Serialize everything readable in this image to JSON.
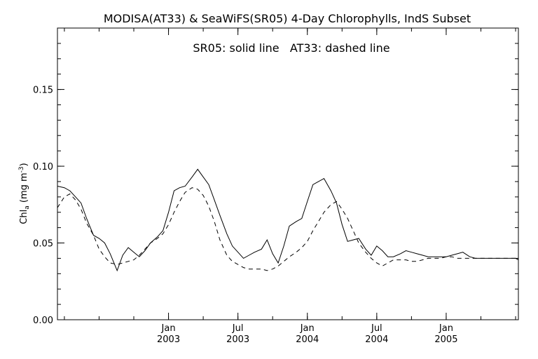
{
  "chart_data": {
    "type": "line",
    "title": "MODISA(AT33) & SeaWiFS(SR05) 4-Day Chlorophylls, IndS Subset",
    "annotation": "SR05: solid line   AT33: dashed line",
    "ylabel": "Chl",
    "ylabel_sub": "a",
    "ylabel_unit_open": " (mg m",
    "ylabel_unit_sup": "-3",
    "ylabel_unit_close": ")",
    "ylim": [
      0,
      0.19
    ],
    "yticks": [
      {
        "value": 0.0,
        "label": "0.00"
      },
      {
        "value": 0.05,
        "label": "0.05"
      },
      {
        "value": 0.1,
        "label": "0.10"
      },
      {
        "value": 0.15,
        "label": "0.15"
      }
    ],
    "xlim": [
      2002.2,
      2005.52
    ],
    "xticks": [
      {
        "value": 2003.0,
        "month": "Jan",
        "year": "2003"
      },
      {
        "value": 2003.5,
        "month": "Jul",
        "year": "2003"
      },
      {
        "value": 2004.0,
        "month": "Jan",
        "year": "2004"
      },
      {
        "value": 2004.5,
        "month": "Jul",
        "year": "2004"
      },
      {
        "value": 2005.0,
        "month": "Jan",
        "year": "2005"
      }
    ],
    "grid": false,
    "series": [
      {
        "name": "SR05",
        "style": "solid",
        "color": "#000000",
        "x": [
          2002.2,
          2002.25,
          2002.29,
          2002.33,
          2002.37,
          2002.41,
          2002.46,
          2002.5,
          2002.54,
          2002.58,
          2002.63,
          2002.67,
          2002.71,
          2002.75,
          2002.79,
          2002.83,
          2002.87,
          2002.92,
          2002.96,
          2003.0,
          2003.04,
          2003.08,
          2003.12,
          2003.17,
          2003.21,
          2003.25,
          2003.29,
          2003.33,
          2003.37,
          2003.42,
          2003.46,
          2003.5,
          2003.54,
          2003.58,
          2003.62,
          2003.67,
          2003.71,
          2003.75,
          2003.79,
          2003.83,
          2003.87,
          2003.92,
          2003.96,
          2004.0,
          2004.04,
          2004.08,
          2004.12,
          2004.17,
          2004.21,
          2004.25,
          2004.29,
          2004.33,
          2004.37,
          2004.42,
          2004.46,
          2004.5,
          2004.54,
          2004.58,
          2004.62,
          2004.67,
          2004.71,
          2004.75,
          2004.79,
          2004.83,
          2004.87,
          2004.92,
          2004.96,
          2005.0,
          2005.04,
          2005.08,
          2005.12,
          2005.17,
          2005.21,
          2005.25,
          2005.29,
          2005.33,
          2005.37,
          2005.42,
          2005.46,
          2005.5,
          2005.52
        ],
        "values": [
          0.087,
          0.086,
          0.084,
          0.08,
          0.076,
          0.066,
          0.055,
          0.053,
          0.05,
          0.043,
          0.032,
          0.042,
          0.047,
          0.044,
          0.041,
          0.045,
          0.05,
          0.054,
          0.058,
          0.07,
          0.084,
          0.086,
          0.087,
          0.093,
          0.098,
          0.093,
          0.088,
          0.078,
          0.068,
          0.056,
          0.048,
          0.044,
          0.04,
          0.042,
          0.044,
          0.046,
          0.052,
          0.043,
          0.037,
          0.048,
          0.061,
          0.064,
          0.066,
          0.077,
          0.088,
          0.09,
          0.092,
          0.084,
          0.076,
          0.062,
          0.051,
          0.052,
          0.053,
          0.046,
          0.042,
          0.048,
          0.045,
          0.041,
          0.041,
          0.043,
          0.045,
          0.044,
          0.043,
          0.042,
          0.041,
          0.041,
          0.041,
          0.041,
          0.042,
          0.043,
          0.044,
          0.041,
          0.04,
          0.04,
          0.04,
          0.04,
          0.04,
          0.04,
          0.04,
          0.04,
          0.039
        ]
      },
      {
        "name": "AT33",
        "style": "dashed",
        "color": "#000000",
        "x": [
          2002.2,
          2002.25,
          2002.29,
          2002.33,
          2002.37,
          2002.41,
          2002.46,
          2002.5,
          2002.54,
          2002.58,
          2002.63,
          2002.67,
          2002.71,
          2002.75,
          2002.79,
          2002.83,
          2002.87,
          2002.92,
          2002.96,
          2003.0,
          2003.04,
          2003.08,
          2003.12,
          2003.17,
          2003.21,
          2003.25,
          2003.29,
          2003.33,
          2003.37,
          2003.42,
          2003.46,
          2003.5,
          2003.54,
          2003.58,
          2003.62,
          2003.67,
          2003.71,
          2003.75,
          2003.79,
          2003.83,
          2003.87,
          2003.92,
          2003.96,
          2004.0,
          2004.04,
          2004.08,
          2004.12,
          2004.17,
          2004.21,
          2004.25,
          2004.29,
          2004.33,
          2004.37,
          2004.42,
          2004.46,
          2004.5,
          2004.54,
          2004.58,
          2004.62,
          2004.67,
          2004.71,
          2004.75,
          2004.79,
          2004.83,
          2004.87,
          2004.92,
          2004.96,
          2005.0,
          2005.04,
          2005.08,
          2005.12,
          2005.17,
          2005.21,
          2005.25,
          2005.29,
          2005.33,
          2005.37,
          2005.42,
          2005.46,
          2005.5,
          2005.52
        ],
        "values": [
          0.073,
          0.08,
          0.082,
          0.078,
          0.072,
          0.063,
          0.055,
          0.046,
          0.041,
          0.037,
          0.036,
          0.037,
          0.038,
          0.039,
          0.042,
          0.046,
          0.05,
          0.053,
          0.056,
          0.062,
          0.07,
          0.077,
          0.083,
          0.086,
          0.085,
          0.081,
          0.074,
          0.064,
          0.052,
          0.042,
          0.038,
          0.036,
          0.034,
          0.033,
          0.033,
          0.033,
          0.032,
          0.033,
          0.035,
          0.038,
          0.041,
          0.044,
          0.047,
          0.051,
          0.058,
          0.064,
          0.07,
          0.075,
          0.077,
          0.072,
          0.066,
          0.058,
          0.05,
          0.044,
          0.04,
          0.037,
          0.035,
          0.037,
          0.039,
          0.039,
          0.039,
          0.038,
          0.038,
          0.039,
          0.04,
          0.04,
          0.04,
          0.041,
          0.041,
          0.04,
          0.04,
          0.04,
          0.04,
          0.04,
          0.04,
          0.04,
          0.04,
          0.04,
          0.04,
          0.04,
          0.04
        ]
      }
    ]
  }
}
